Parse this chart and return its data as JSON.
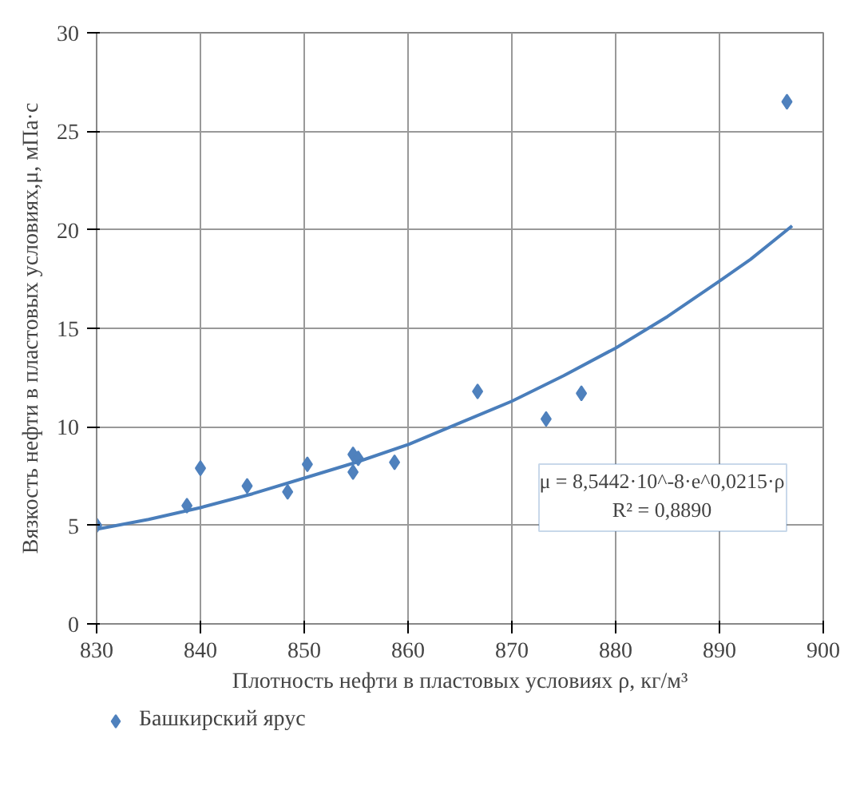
{
  "chart_data": {
    "type": "scatter",
    "xlabel": "Плотность нефти в пластовых условиях ρ, кг/м³",
    "ylabel": "Вязкость нефти в пластовых условиях,μ, мПа·с",
    "xlim": [
      830,
      900
    ],
    "xticks": [
      830,
      840,
      850,
      860,
      870,
      880,
      890,
      900
    ],
    "ylim": [
      0,
      30
    ],
    "yticks": [
      0,
      5,
      10,
      15,
      20,
      25,
      30
    ],
    "grid": true,
    "legend": "bottom",
    "series": [
      {
        "name": "Башкирский ярус",
        "color": "#4f81bd",
        "marker": "diamond",
        "x": [
          830,
          838.7,
          840,
          844.5,
          848.4,
          850.3,
          854.7,
          854.7,
          855.2,
          858.7,
          866.7,
          873.3,
          876.7,
          896.5
        ],
        "values": [
          5.0,
          6.0,
          7.9,
          7.0,
          6.7,
          8.1,
          8.6,
          7.7,
          8.4,
          8.2,
          11.8,
          10.4,
          11.7,
          26.5
        ]
      },
      {
        "type": "line",
        "marker": "none",
        "color": "#4a7ebb",
        "x": [
          830,
          835,
          840,
          845,
          850,
          855,
          860,
          865,
          870,
          875,
          880,
          885,
          890,
          893,
          897
        ],
        "values": [
          4.8,
          5.3,
          5.9,
          6.6,
          7.4,
          8.2,
          9.1,
          10.2,
          11.3,
          12.6,
          14.0,
          15.6,
          17.4,
          18.5,
          20.2
        ]
      }
    ],
    "annotations": [
      "μ = 8,5442·10^-8·e^0,0215·ρ",
      "R² = 0,8890"
    ]
  }
}
